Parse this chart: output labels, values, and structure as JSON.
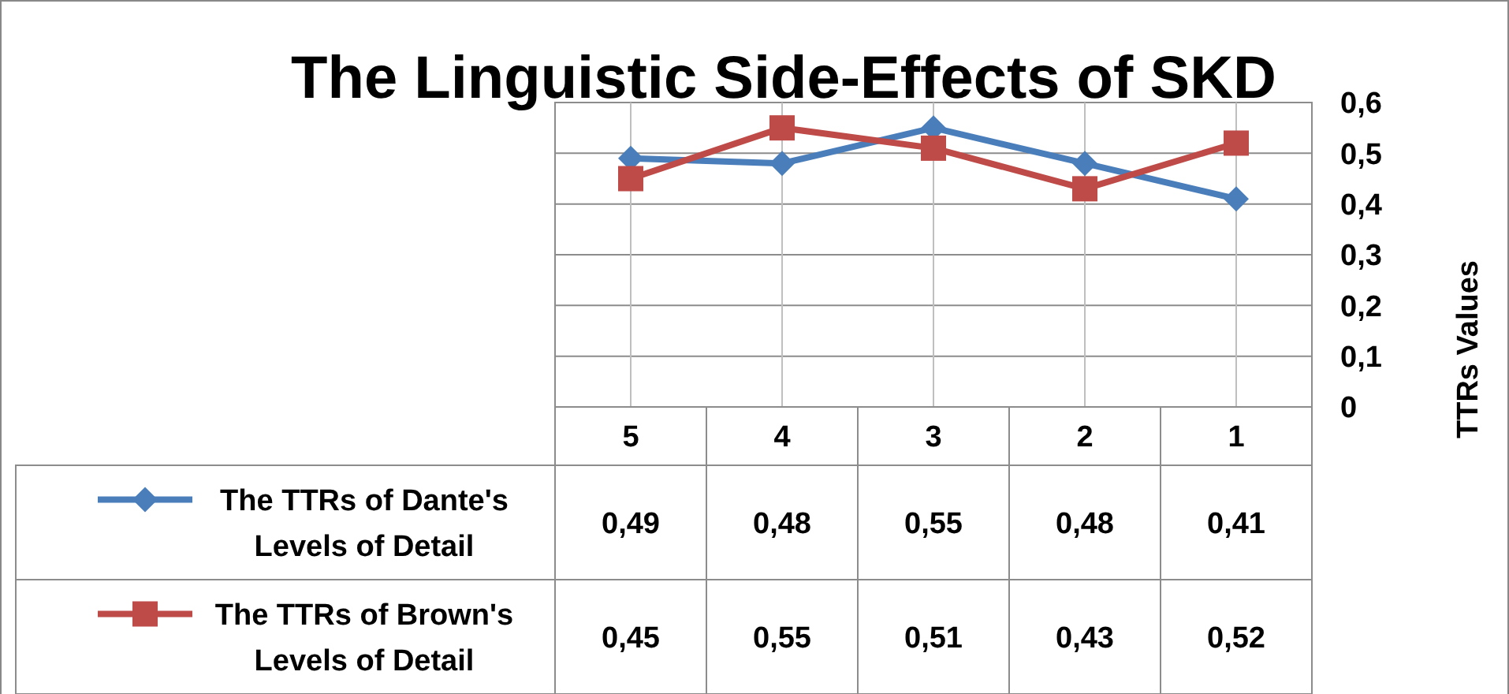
{
  "chart_data": {
    "type": "line",
    "title": "The Linguistic Side-Effects of SKD",
    "ylabel": "TTRs Values",
    "categories": [
      "5",
      "4",
      "3",
      "2",
      "1"
    ],
    "series": [
      {
        "name": "The TTRs of Dante's Levels of Detail",
        "color": "#4a7ebb",
        "marker": "diamond",
        "values": [
          0.49,
          0.48,
          0.55,
          0.48,
          0.41
        ],
        "value_labels": [
          "0,49",
          "0,48",
          "0,55",
          "0,48",
          "0,41"
        ]
      },
      {
        "name": "The TTRs of Brown's Levels of Detail",
        "color": "#be4b48",
        "marker": "square",
        "values": [
          0.45,
          0.55,
          0.51,
          0.43,
          0.52
        ],
        "value_labels": [
          "0,45",
          "0,55",
          "0,51",
          "0,43",
          "0,52"
        ]
      }
    ],
    "ylim": [
      0,
      0.6
    ],
    "yticks": [
      {
        "value": 0,
        "label": "0"
      },
      {
        "value": 0.1,
        "label": "0,1"
      },
      {
        "value": 0.2,
        "label": "0,2"
      },
      {
        "value": 0.3,
        "label": "0,3"
      },
      {
        "value": 0.4,
        "label": "0,4"
      },
      {
        "value": 0.5,
        "label": "0,5"
      },
      {
        "value": 0.6,
        "label": "0,6"
      }
    ],
    "grid": true,
    "legend": "bottom"
  }
}
